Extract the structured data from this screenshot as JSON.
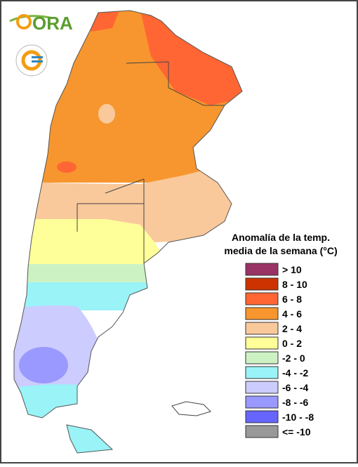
{
  "logo": {
    "text": "ORA"
  },
  "legend": {
    "title_lines": [
      "Anomalía de la temp.",
      "media de la semana (°C)"
    ],
    "items": [
      {
        "label": "> 10",
        "color": "#993366"
      },
      {
        "label": "8 - 10",
        "color": "#cc3300"
      },
      {
        "label": "6 - 8",
        "color": "#ff6633"
      },
      {
        "label": "4 - 6",
        "color": "#f7962e"
      },
      {
        "label": "2 - 4",
        "color": "#f9c99b"
      },
      {
        "label": "0 - 2",
        "color": "#ffff99"
      },
      {
        "label": "-2 - 0",
        "color": "#ccf2c4"
      },
      {
        "label": "-4 - -2",
        "color": "#99f3f7"
      },
      {
        "label": "-6 - -4",
        "color": "#ccccff"
      },
      {
        "label": "-8 - -6",
        "color": "#9999ff"
      },
      {
        "label": "-10 - -8",
        "color": "#6666ff"
      },
      {
        "label": "<= -10",
        "color": "#999999"
      }
    ]
  }
}
